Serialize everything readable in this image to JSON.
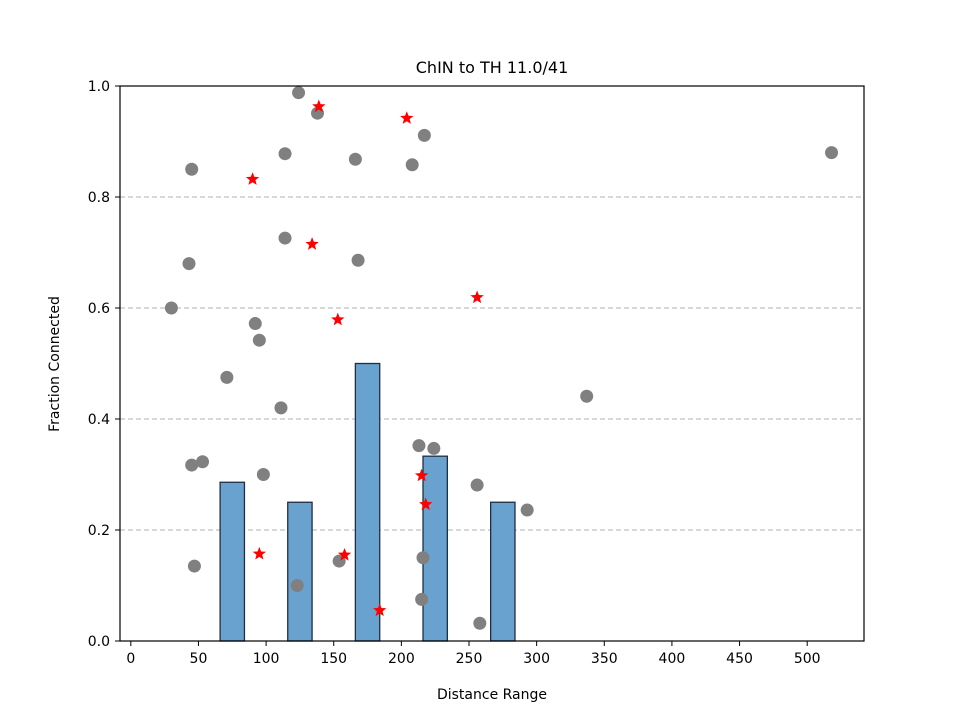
{
  "chart_data": {
    "type": "bar",
    "title": "ChIN to TH 11.0/41",
    "xlabel": "Distance Range",
    "ylabel": "Fraction Connected",
    "xlim": [
      -8,
      542
    ],
    "ylim": [
      0,
      1.0
    ],
    "xticks": [
      0,
      50,
      100,
      150,
      200,
      250,
      300,
      350,
      400,
      450,
      500
    ],
    "yticks": [
      0.0,
      0.2,
      0.4,
      0.6,
      0.8,
      1.0
    ],
    "ytick_labels": [
      "0.0",
      "0.2",
      "0.4",
      "0.6",
      "0.8",
      "1.0"
    ],
    "grid": "y-dashed",
    "bar_width": 18,
    "bars": [
      {
        "x": 25,
        "value": 0.0
      },
      {
        "x": 75,
        "value": 0.286
      },
      {
        "x": 125,
        "value": 0.25
      },
      {
        "x": 175,
        "value": 0.5
      },
      {
        "x": 225,
        "value": 0.333
      },
      {
        "x": 275,
        "value": 0.25
      },
      {
        "x": 325,
        "value": 0.0
      },
      {
        "x": 375,
        "value": 0.0
      },
      {
        "x": 425,
        "value": 0.0
      },
      {
        "x": 475,
        "value": 0.0
      },
      {
        "x": 525,
        "value": 0.0
      }
    ],
    "series": [
      {
        "marker": "circle",
        "color": "#808080",
        "points": [
          {
            "x": 30,
            "y": 0.6
          },
          {
            "x": 43,
            "y": 0.68
          },
          {
            "x": 45,
            "y": 0.85
          },
          {
            "x": 45,
            "y": 0.317
          },
          {
            "x": 47,
            "y": 0.135
          },
          {
            "x": 53,
            "y": 0.323
          },
          {
            "x": 71,
            "y": 0.475
          },
          {
            "x": 92,
            "y": 0.572
          },
          {
            "x": 95,
            "y": 0.542
          },
          {
            "x": 98,
            "y": 0.3
          },
          {
            "x": 111,
            "y": 0.42
          },
          {
            "x": 114,
            "y": 0.726
          },
          {
            "x": 114,
            "y": 0.878
          },
          {
            "x": 123,
            "y": 0.1
          },
          {
            "x": 124,
            "y": 0.988
          },
          {
            "x": 138,
            "y": 0.951
          },
          {
            "x": 154,
            "y": 0.144
          },
          {
            "x": 166,
            "y": 0.868
          },
          {
            "x": 168,
            "y": 0.686
          },
          {
            "x": 208,
            "y": 0.858
          },
          {
            "x": 213,
            "y": 0.352
          },
          {
            "x": 215,
            "y": 0.075
          },
          {
            "x": 216,
            "y": 0.15
          },
          {
            "x": 217,
            "y": 0.911
          },
          {
            "x": 224,
            "y": 0.347
          },
          {
            "x": 256,
            "y": 0.281
          },
          {
            "x": 258,
            "y": 0.032
          },
          {
            "x": 293,
            "y": 0.236
          },
          {
            "x": 337,
            "y": 0.441
          },
          {
            "x": 518,
            "y": 0.88
          }
        ]
      },
      {
        "marker": "star",
        "color": "#ff0000",
        "points": [
          {
            "x": 90,
            "y": 0.832
          },
          {
            "x": 95,
            "y": 0.157
          },
          {
            "x": 134,
            "y": 0.715
          },
          {
            "x": 139,
            "y": 0.963
          },
          {
            "x": 153,
            "y": 0.579
          },
          {
            "x": 158,
            "y": 0.155
          },
          {
            "x": 184,
            "y": 0.055
          },
          {
            "x": 204,
            "y": 0.942
          },
          {
            "x": 215,
            "y": 0.298
          },
          {
            "x": 218,
            "y": 0.246
          },
          {
            "x": 256,
            "y": 0.619
          }
        ]
      }
    ],
    "colors": {
      "bar_fill": "#6aa2cf",
      "bar_edge": "#1f2f44",
      "grid": "#b0b0b0"
    }
  }
}
